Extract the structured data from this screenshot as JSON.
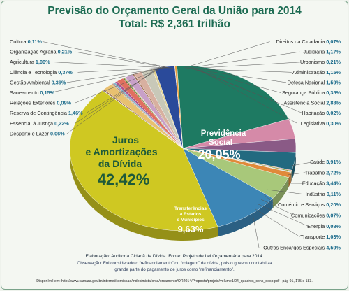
{
  "title": "Previsão do Orçamento Geral da União para 2014",
  "subtitle": "Total: R$ 2,361 trilhão",
  "chart_data": {
    "type": "pie",
    "unit": "%",
    "slices": [
      {
        "label": "Previdência Social",
        "value": 20.05,
        "color": "#1e7a62"
      },
      {
        "label": "Saúde",
        "value": 3.91,
        "color": "#d58aa8"
      },
      {
        "label": "Trabalho",
        "value": 2.72,
        "color": "#8a5a86"
      },
      {
        "label": "Educação",
        "value": 3.44,
        "color": "#236a80"
      },
      {
        "label": "Indústria",
        "value": 0.11,
        "color": "#c0503a"
      },
      {
        "label": "Comércio e Serviços",
        "value": 0.2,
        "color": "#8a9a3a"
      },
      {
        "label": "Comunicações",
        "value": 0.07,
        "color": "#6a3a7a"
      },
      {
        "label": "Energia",
        "value": 0.08,
        "color": "#4aa0a0"
      },
      {
        "label": "Transporte",
        "value": 1.03,
        "color": "#e08a3a"
      },
      {
        "label": "Outros Encargos Especiais",
        "value": 4.59,
        "color": "#a8c87a"
      },
      {
        "label": "Transferências a Estados e Municípios",
        "value": 9.63,
        "color": "#3c86b6"
      },
      {
        "label": "Juros e Amortizações da Dívida",
        "value": 42.42,
        "color": "#cfc822"
      },
      {
        "label": "Desporto e Lazer",
        "value": 0.06,
        "color": "#7a9aba"
      },
      {
        "label": "Essencial à Justiça",
        "value": 0.22,
        "color": "#9a6a4a"
      },
      {
        "label": "Reserva de Contingência",
        "value": 1.46,
        "color": "#e8c070"
      },
      {
        "label": "Relações Exteriores",
        "value": 0.09,
        "color": "#5a8a5a"
      },
      {
        "label": "Saneamento",
        "value": 0.15,
        "color": "#c4785a"
      },
      {
        "label": "Gestão Ambiental",
        "value": 0.36,
        "color": "#8ab0c8"
      },
      {
        "label": "Ciência e Tecnologia",
        "value": 0.37,
        "color": "#b0508a"
      },
      {
        "label": "Agricultura",
        "value": 1.0,
        "color": "#e07060"
      },
      {
        "label": "Organização Agrária",
        "value": 0.21,
        "color": "#6a8a3a"
      },
      {
        "label": "Cultura",
        "value": 0.11,
        "color": "#d0a040"
      },
      {
        "label": "Direitos da Cidadania",
        "value": 0.07,
        "color": "#7a5aa0"
      },
      {
        "label": "Judiciária",
        "value": 1.17,
        "color": "#c8a0c8"
      },
      {
        "label": "Urbanismo",
        "value": 0.21,
        "color": "#a07050"
      },
      {
        "label": "Administração",
        "value": 1.15,
        "color": "#d8b0a0"
      },
      {
        "label": "Defesa Nacional",
        "value": 1.59,
        "color": "#c8c8b8"
      },
      {
        "label": "Segurança Pública",
        "value": 0.35,
        "color": "#e0d090"
      },
      {
        "label": "Assistência Social",
        "value": 2.88,
        "color": "#2a4a9a"
      },
      {
        "label": "Habitação",
        "value": 0.02,
        "color": "#b03030"
      },
      {
        "label": "Legislativa",
        "value": 0.3,
        "color": "#e8a040"
      }
    ],
    "inner_labels": {
      "previdencia_line1": "Previdência",
      "previdencia_line2": "Social",
      "previdencia_value": "20,05%",
      "juros_line1": "Juros",
      "juros_line2": "e Amortizações",
      "juros_line3": "da Dívida",
      "juros_value": "42,42%",
      "transf_line1": "Transferências",
      "transf_line2": "a Estados",
      "transf_line3": "e Municípios",
      "transf_value": "9,63%"
    },
    "left_labels": [
      {
        "name": "Cultura",
        "pct": "0,11%"
      },
      {
        "name": "Organização Agrária",
        "pct": "0,21%"
      },
      {
        "name": "Agricultura",
        "pct": "1,00%"
      },
      {
        "name": "Ciência e Tecnologia",
        "pct": "0,37%"
      },
      {
        "name": "Gestão Ambiental",
        "pct": "0,36%"
      },
      {
        "name": "Saneamento",
        "pct": "0,15%"
      },
      {
        "name": "Relações Exteriores",
        "pct": "0,09%"
      },
      {
        "name": "Reserva de Contingência",
        "pct": "1,46%"
      },
      {
        "name": "Essencial à Justiça",
        "pct": "0,22%"
      },
      {
        "name": "Desporto e Lazer",
        "pct": "0,06%"
      }
    ],
    "right_top_labels": [
      {
        "name": "Direitos da Cidadania",
        "pct": "0,07%"
      },
      {
        "name": "Judiciária",
        "pct": "1,17%"
      },
      {
        "name": "Urbanismo",
        "pct": "0,21%"
      },
      {
        "name": "Administração",
        "pct": "1,15%"
      },
      {
        "name": "Defesa Nacional",
        "pct": "1,59%"
      },
      {
        "name": "Segurança Pública",
        "pct": "0,35%"
      },
      {
        "name": "Assistência Social",
        "pct": "2,88%"
      },
      {
        "name": "Habitação",
        "pct": "0,02%"
      },
      {
        "name": "Legislativa",
        "pct": "0,30%"
      }
    ],
    "right_bottom_labels": [
      {
        "name": "Saúde",
        "pct": "3,91%"
      },
      {
        "name": "Trabalho",
        "pct": "2,72%"
      },
      {
        "name": "Educação",
        "pct": "3,44%"
      },
      {
        "name": "Indústria",
        "pct": "0,11%"
      },
      {
        "name": "Comércio e Serviços",
        "pct": "0,20%"
      },
      {
        "name": "Comunicações",
        "pct": "0,07%"
      },
      {
        "name": "Energia",
        "pct": "0,08%"
      },
      {
        "name": "Transporte",
        "pct": "1,03%"
      },
      {
        "name": "Outros Encargos Especiais",
        "pct": "4,59%"
      }
    ]
  },
  "footer": {
    "line1": "Elaboração: Auditoria Cidadã da Dívida. Fonte: Projeto de Lei Orçamentária para 2014.",
    "line2": "Observação:  Foi considerado o “refinanciamento” ou “rolagem” da dívida, pois o governo contabiliza",
    "line3": "grande parte do pagamento de juros como “refinanciamento”.",
    "line4": "Disponível em: http://www.camara.gov.br/internet/comissao/index/mista/orca/orcamento/OR2014/Proposta/projeto/volume1/04_quadros_cons_desp.pdf , pág 91, 175 e 183."
  }
}
